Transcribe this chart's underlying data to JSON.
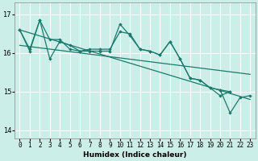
{
  "xlabel": "Humidex (Indice chaleur)",
  "xlim": [
    -0.5,
    23.5
  ],
  "ylim": [
    13.8,
    17.3
  ],
  "yticks": [
    14,
    15,
    16,
    17
  ],
  "xticks": [
    0,
    1,
    2,
    3,
    4,
    5,
    6,
    7,
    8,
    9,
    10,
    11,
    12,
    13,
    14,
    15,
    16,
    17,
    18,
    19,
    20,
    21,
    22,
    23
  ],
  "bg_color": "#cceee8",
  "line_color": "#1a7a6e",
  "grid_color": "#ffffff",
  "series1": [
    16.6,
    16.1,
    16.85,
    15.85,
    16.3,
    16.2,
    16.05,
    16.1,
    16.1,
    16.1,
    16.55,
    16.5,
    16.1,
    16.05,
    15.95,
    16.3,
    15.85,
    15.35,
    15.3,
    15.1,
    14.9,
    15.0,
    null,
    null
  ],
  "series2": [
    16.6,
    16.05,
    16.85,
    16.35,
    16.35,
    16.1,
    16.05,
    16.05,
    16.05,
    16.05,
    16.75,
    16.45,
    16.1,
    16.05,
    15.95,
    16.3,
    15.85,
    15.35,
    15.3,
    15.1,
    15.05,
    15.0,
    null,
    null
  ],
  "series3": [
    null,
    null,
    null,
    null,
    null,
    null,
    null,
    null,
    null,
    null,
    null,
    null,
    null,
    null,
    null,
    null,
    null,
    null,
    null,
    null,
    15.05,
    14.45,
    14.85,
    14.9
  ],
  "trend1_x": [
    0,
    23
  ],
  "trend1_y": [
    16.6,
    14.8
  ],
  "trend2_x": [
    0,
    23
  ],
  "trend2_y": [
    16.2,
    15.45
  ]
}
